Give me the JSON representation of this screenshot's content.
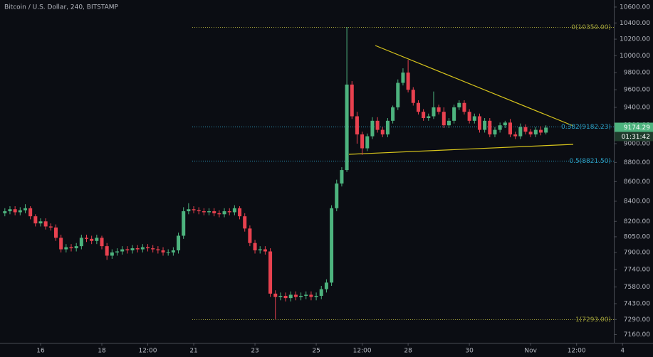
{
  "chart_data": {
    "type": "candlestick",
    "title": "Bitcoin / U.S. Dollar, 240, BITSTAMP",
    "log_scale": true,
    "up_color": "#4db37e",
    "down_color": "#e8414f",
    "ylim": [
      7090,
      10690
    ],
    "yticks": [
      {
        "value": 7160,
        "label": "7160.00"
      },
      {
        "value": 7290,
        "label": "7290.00"
      },
      {
        "value": 7430,
        "label": "7430.00"
      },
      {
        "value": 7580,
        "label": "7580.00"
      },
      {
        "value": 7740,
        "label": "7740.00"
      },
      {
        "value": 7900,
        "label": "7900.00"
      },
      {
        "value": 8050,
        "label": "8050.00"
      },
      {
        "value": 8200,
        "label": "8200.00"
      },
      {
        "value": 8400,
        "label": "8400.00"
      },
      {
        "value": 8600,
        "label": "8600.00"
      },
      {
        "value": 8800,
        "label": "8800.00"
      },
      {
        "value": 9000,
        "label": "9000.00"
      },
      {
        "value": 9200,
        "label": "9200.00"
      },
      {
        "value": 9400,
        "label": "9400.00"
      },
      {
        "value": 9600,
        "label": "9600.00"
      },
      {
        "value": 9800,
        "label": "9800.00"
      },
      {
        "value": 10000,
        "label": "10000.00"
      },
      {
        "value": 10200,
        "label": "10200.00"
      },
      {
        "value": 10400,
        "label": "10400.00"
      },
      {
        "value": 10600,
        "label": "10600.00"
      }
    ],
    "xlim": [
      -0.95,
      119.3
    ],
    "xticks": [
      {
        "value": 7,
        "label": "16"
      },
      {
        "value": 19,
        "label": "18"
      },
      {
        "value": 28,
        "label": "12:00"
      },
      {
        "value": 37,
        "label": "21"
      },
      {
        "value": 49,
        "label": "23"
      },
      {
        "value": 61,
        "label": "25"
      },
      {
        "value": 70,
        "label": "12:00"
      },
      {
        "value": 79,
        "label": "28"
      },
      {
        "value": 91,
        "label": "30"
      },
      {
        "value": 103,
        "label": "Nov"
      },
      {
        "value": 112,
        "label": "12:00"
      },
      {
        "value": 121,
        "label": "4"
      }
    ],
    "open": [
      8280,
      8300,
      8320,
      8290,
      8310,
      8330,
      8250,
      8180,
      8200,
      8150,
      8140,
      8040,
      7930,
      7950,
      7940,
      7960,
      8040,
      8030,
      8010,
      8040,
      7960,
      7870,
      7900,
      7910,
      7930,
      7920,
      7940,
      7930,
      7950,
      7940,
      7930,
      7920,
      7900,
      7900,
      7920,
      8060,
      8300,
      8320,
      8310,
      8300,
      8290,
      8300,
      8280,
      8270,
      8300,
      8290,
      8330,
      8250,
      8130,
      7990,
      7920,
      7930,
      7910,
      7520,
      7490,
      7500,
      7480,
      7510,
      7490,
      7500,
      7510,
      7490,
      7500,
      7560,
      7620,
      8330,
      8580,
      8720,
      9660,
      9300,
      9100,
      8950,
      9080,
      9250,
      9150,
      9100,
      9250,
      9400,
      9680,
      9800,
      9600,
      9450,
      9350,
      9280,
      9300,
      9400,
      9350,
      9200,
      9250,
      9400,
      9450,
      9350,
      9250,
      9300,
      9150,
      9250,
      9100,
      9150,
      9200,
      9230,
      9100,
      9080,
      9180,
      9130,
      9100,
      9150,
      9120
    ],
    "high": [
      8330,
      8350,
      8350,
      8340,
      8370,
      8350,
      8270,
      8230,
      8230,
      8180,
      8170,
      8070,
      7980,
      7980,
      7990,
      8070,
      8070,
      8060,
      8070,
      8060,
      7990,
      7930,
      7940,
      7960,
      7960,
      7970,
      7970,
      7980,
      7980,
      7970,
      7960,
      7950,
      7930,
      7950,
      8090,
      8340,
      8380,
      8350,
      8340,
      8330,
      8330,
      8330,
      8310,
      8330,
      8330,
      8360,
      8350,
      8280,
      8160,
      8020,
      7960,
      7960,
      7940,
      7550,
      7530,
      7530,
      7540,
      7540,
      7530,
      7540,
      7540,
      7530,
      7590,
      7650,
      8360,
      8620,
      8750,
      10350,
      9700,
      9350,
      9130,
      9110,
      9290,
      9290,
      9180,
      9280,
      9420,
      9720,
      9850,
      9950,
      9630,
      9480,
      9380,
      9330,
      9580,
      9430,
      9400,
      9280,
      9430,
      9480,
      9480,
      9380,
      9330,
      9330,
      9280,
      9280,
      9180,
      9230,
      9250,
      9270,
      9130,
      9220,
      9210,
      9160,
      9180,
      9190,
      9200
    ],
    "low": [
      8250,
      8270,
      8260,
      8260,
      8280,
      8220,
      8150,
      8150,
      8120,
      8110,
      8010,
      7900,
      7900,
      7910,
      7910,
      7930,
      8000,
      7980,
      7980,
      7930,
      7830,
      7840,
      7870,
      7880,
      7890,
      7890,
      7900,
      7900,
      7910,
      7900,
      7890,
      7870,
      7870,
      7870,
      7890,
      8030,
      8270,
      8280,
      8270,
      8260,
      8260,
      8250,
      8240,
      8240,
      8260,
      8260,
      8220,
      8100,
      7960,
      7890,
      7890,
      7880,
      7490,
      7293,
      7460,
      7450,
      7450,
      7460,
      7460,
      7470,
      7460,
      7460,
      7470,
      7530,
      7590,
      8300,
      8550,
      8700,
      9270,
      9000,
      8880,
      8920,
      9050,
      9120,
      9070,
      9070,
      9220,
      9370,
      9650,
      9570,
      9420,
      9320,
      9250,
      9250,
      9270,
      9320,
      9170,
      9170,
      9220,
      9370,
      9320,
      9220,
      9220,
      9120,
      9120,
      9070,
      9070,
      9120,
      9170,
      9070,
      9050,
      9050,
      9100,
      9070,
      9070,
      9090,
      9100
    ],
    "close": [
      8300,
      8320,
      8290,
      8310,
      8330,
      8250,
      8180,
      8200,
      8150,
      8140,
      8040,
      7930,
      7950,
      7940,
      7960,
      8040,
      8030,
      8010,
      8040,
      7960,
      7870,
      7900,
      7910,
      7930,
      7920,
      7940,
      7930,
      7950,
      7940,
      7930,
      7920,
      7900,
      7900,
      7920,
      8060,
      8300,
      8320,
      8310,
      8300,
      8290,
      8300,
      8280,
      8270,
      8300,
      8290,
      8330,
      8250,
      8130,
      7990,
      7920,
      7930,
      7910,
      7520,
      7490,
      7500,
      7480,
      7510,
      7490,
      7500,
      7510,
      7490,
      7500,
      7560,
      7620,
      8330,
      8580,
      8720,
      9660,
      9300,
      9100,
      8950,
      9080,
      9250,
      9150,
      9100,
      9250,
      9400,
      9680,
      9800,
      9600,
      9450,
      9350,
      9280,
      9300,
      9400,
      9350,
      9200,
      9250,
      9400,
      9450,
      9350,
      9250,
      9300,
      9150,
      9250,
      9100,
      9150,
      9200,
      9230,
      9100,
      9080,
      9180,
      9130,
      9100,
      9150,
      9120,
      9174.29
    ],
    "fib_levels": [
      {
        "value": 10350,
        "label": "0(10350.00)",
        "color": "#a3a33a"
      },
      {
        "value": 9182.23,
        "label": "0.382(9182.23)",
        "color": "#2b9fc4"
      },
      {
        "value": 8821.5,
        "label": "0.5(8821.50)",
        "color": "#2b9fc4"
      },
      {
        "value": 7293,
        "label": "1(7293.00)",
        "color": "#a3a33a"
      }
    ],
    "last_price": 9174.29,
    "countdown": "01:31:42"
  }
}
